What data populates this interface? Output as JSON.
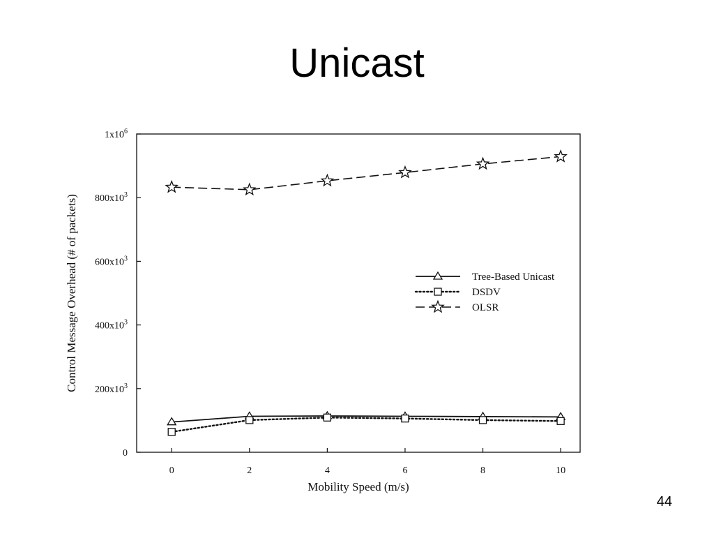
{
  "slide": {
    "title": "Unicast",
    "page_number": "44"
  },
  "chart_data": {
    "type": "line",
    "title": "",
    "xlabel": "Mobility Speed (m/s)",
    "ylabel": "Control Message Overhead (# of packets)",
    "xlim": [
      -0.9,
      10.5
    ],
    "ylim": [
      0,
      1000000
    ],
    "x_ticks": [
      0,
      2,
      4,
      6,
      8,
      10
    ],
    "y_ticks": [
      {
        "value": 0,
        "base": "0",
        "exp": ""
      },
      {
        "value": 200000,
        "base": "200x10",
        "exp": "3"
      },
      {
        "value": 400000,
        "base": "400x10",
        "exp": "3"
      },
      {
        "value": 600000,
        "base": "600x10",
        "exp": "3"
      },
      {
        "value": 800000,
        "base": "800x10",
        "exp": "3"
      },
      {
        "value": 1000000,
        "base": "1x10",
        "exp": "6"
      }
    ],
    "grid": false,
    "legend_position": "center-right",
    "x": [
      0,
      2,
      4,
      6,
      8,
      10
    ],
    "series": [
      {
        "name": "Tree-Based Unicast",
        "marker": "triangle",
        "dash": "solid",
        "values": [
          95000,
          113000,
          114000,
          113000,
          112000,
          111000
        ]
      },
      {
        "name": "DSDV",
        "marker": "square",
        "dash": "dotted",
        "values": [
          64000,
          101000,
          109000,
          106000,
          101000,
          98000
        ]
      },
      {
        "name": "OLSR",
        "marker": "star",
        "dash": "dashed",
        "values": [
          833000,
          825000,
          853000,
          879000,
          906000,
          929000
        ]
      }
    ]
  }
}
